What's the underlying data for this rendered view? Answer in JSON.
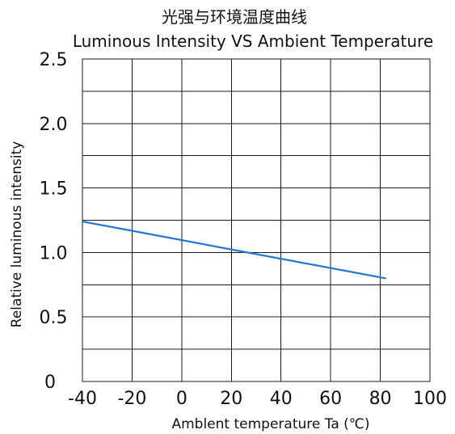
{
  "chart_data": {
    "type": "line",
    "title": "光强与环境温度曲线",
    "subtitle": "Luminous Intensity VS Ambient Temperature",
    "xlabel": "Amblent temperature Ta (℃)",
    "ylabel": "Relative luminous intensity",
    "xlim": [
      -40,
      100
    ],
    "ylim": [
      0,
      2.5
    ],
    "x_ticks": [
      -40,
      -20,
      0,
      20,
      40,
      60,
      80,
      100
    ],
    "x_tick_labels": [
      "-40",
      "-20",
      "0",
      "20",
      "40",
      "60",
      "80",
      "100"
    ],
    "y_ticks": [
      0,
      0.5,
      1.0,
      1.5,
      2.0,
      2.5
    ],
    "y_tick_labels": [
      "0",
      "0.5",
      "1.0",
      "1.5",
      "2.0",
      "2.5"
    ],
    "grid": true,
    "series": [
      {
        "color": "#1f77d4",
        "x": [
          -40,
          82
        ],
        "y": [
          1.24,
          0.8
        ]
      }
    ]
  }
}
